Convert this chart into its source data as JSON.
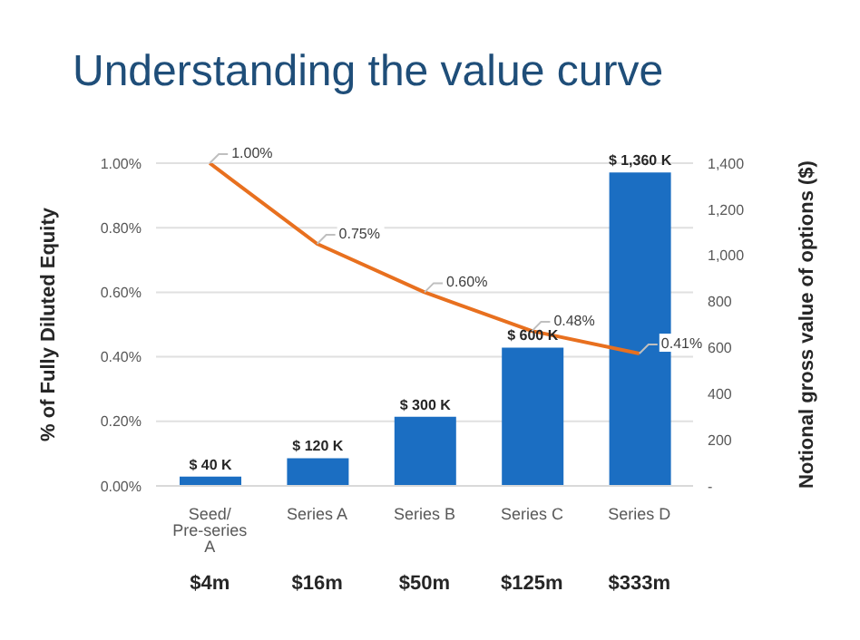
{
  "chart_data": {
    "type": "bar",
    "title": "Understanding the value curve",
    "categories": [
      "Seed/ Pre-series A",
      "Series A",
      "Series B",
      "Series C",
      "Series D"
    ],
    "series": [
      {
        "axis": "y2",
        "color": "#1b6ec2",
        "values": [
          40,
          120,
          300,
          600,
          1360
        ],
        "value_labels": [
          "$ 40 K",
          "$ 120 K",
          "$ 300 K",
          "$ 600 K",
          "$ 1,360 K"
        ]
      },
      {
        "type": "line",
        "axis": "y",
        "color": "#e8701f",
        "values": [
          1.0,
          0.75,
          0.6,
          0.48,
          0.41
        ],
        "value_labels": [
          "1.00%",
          "0.75%",
          "0.60%",
          "0.48%",
          "0.41%"
        ]
      }
    ],
    "ylabel": "% of Fully Diluted Equity",
    "y2label": "Notional gross value of options ($)",
    "ylim": [
      0,
      1.0
    ],
    "yticks": [
      {
        "value": 0,
        "label": "0.00%"
      },
      {
        "value": 0.2,
        "label": "0.20%"
      },
      {
        "value": 0.4,
        "label": "0.40%"
      },
      {
        "value": 0.6,
        "label": "0.60%"
      },
      {
        "value": 0.8,
        "label": "0.80%"
      },
      {
        "value": 1.0,
        "label": "1.00%"
      }
    ],
    "y2lim": [
      0,
      1400
    ],
    "y2ticks": [
      {
        "value": 0,
        "label": "-"
      },
      {
        "value": 200,
        "label": "200"
      },
      {
        "value": 400,
        "label": "400"
      },
      {
        "value": 600,
        "label": "600"
      },
      {
        "value": 800,
        "label": "800"
      },
      {
        "value": 1000,
        "label": "1,000"
      },
      {
        "value": 1200,
        "label": "1,200"
      },
      {
        "value": 1400,
        "label": "1,400"
      }
    ],
    "annotations": [
      "$4m",
      "$16m",
      "$50m",
      "$125m",
      "$333m"
    ],
    "grid": "y",
    "legend": false,
    "marker": "none",
    "line_style": "solid"
  }
}
